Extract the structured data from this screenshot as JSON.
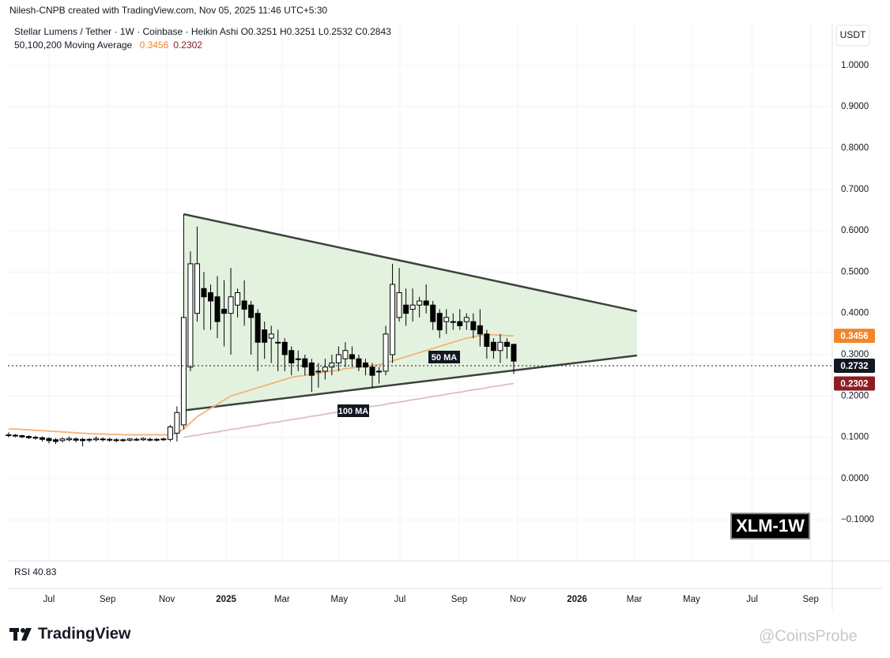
{
  "chart_data": {
    "type": "candlestick",
    "credit": "Nilesh-CNPB created with TradingView.com, Nov 05, 2025 11:46 UTC+5:30",
    "title": "Stellar Lumens / Tether · 1W · Coinbase · Heikin Ashi",
    "ohlc_text": [
      "O0.3251",
      "H0.3251",
      "L0.2532",
      "C0.2843"
    ],
    "ma_legend": "50,100,200 Moving Average",
    "currency": "USDT",
    "rsi_label": "RSI",
    "rsi_value": "40.83",
    "symbol_badge": "XLM-1W",
    "brand": "TradingView",
    "watermark": "@CoinsProbe",
    "up_color": "#ffffff",
    "down_color": "#000000",
    "x": [
      -6,
      -5,
      -4,
      -3,
      -2,
      -1,
      0,
      1,
      2,
      3,
      4,
      5,
      6,
      7,
      8,
      9,
      10,
      11,
      12,
      13,
      14,
      15,
      16,
      17,
      18,
      19,
      20,
      21,
      22,
      23,
      24,
      25,
      26,
      27,
      28,
      29,
      30,
      31,
      32,
      33,
      34,
      35,
      36,
      37,
      38,
      39,
      40,
      41,
      42,
      43,
      44,
      45,
      46,
      47,
      48,
      49,
      50,
      51,
      52,
      53,
      54,
      55,
      56,
      57,
      58,
      59,
      60,
      61,
      62,
      63,
      64,
      65,
      66,
      67,
      68,
      69
    ],
    "open": [
      0.106,
      0.105,
      0.104,
      0.102,
      0.1,
      0.099,
      0.097,
      0.094,
      0.092,
      0.094,
      0.096,
      0.095,
      0.094,
      0.094,
      0.096,
      0.095,
      0.094,
      0.093,
      0.093,
      0.095,
      0.094,
      0.095,
      0.094,
      0.094,
      0.095,
      0.11,
      0.13,
      0.27,
      0.4,
      0.46,
      0.45,
      0.44,
      0.41,
      0.4,
      0.42,
      0.43,
      0.42,
      0.4,
      0.36,
      0.34,
      0.33,
      0.33,
      0.31,
      0.29,
      0.29,
      0.28,
      0.26,
      0.26,
      0.27,
      0.28,
      0.29,
      0.3,
      0.29,
      0.28,
      0.27,
      0.26,
      0.26,
      0.3,
      0.39,
      0.42,
      0.41,
      0.42,
      0.43,
      0.42,
      0.4,
      0.38,
      0.38,
      0.38,
      0.38,
      0.38,
      0.37,
      0.35,
      0.33,
      0.31,
      0.33,
      0.3251
    ],
    "high": [
      0.112,
      0.108,
      0.106,
      0.105,
      0.104,
      0.102,
      0.1,
      0.098,
      0.1,
      0.102,
      0.1,
      0.099,
      0.098,
      0.102,
      0.1,
      0.099,
      0.098,
      0.097,
      0.098,
      0.099,
      0.1,
      0.099,
      0.098,
      0.099,
      0.13,
      0.175,
      0.64,
      0.55,
      0.61,
      0.5,
      0.47,
      0.49,
      0.48,
      0.51,
      0.46,
      0.48,
      0.43,
      0.41,
      0.38,
      0.37,
      0.36,
      0.34,
      0.32,
      0.31,
      0.3,
      0.29,
      0.28,
      0.29,
      0.3,
      0.32,
      0.33,
      0.32,
      0.3,
      0.29,
      0.28,
      0.27,
      0.37,
      0.52,
      0.51,
      0.46,
      0.46,
      0.44,
      0.47,
      0.43,
      0.41,
      0.41,
      0.4,
      0.41,
      0.4,
      0.4,
      0.41,
      0.36,
      0.34,
      0.35,
      0.34,
      0.3251
    ],
    "low": [
      0.1,
      0.1,
      0.098,
      0.096,
      0.094,
      0.09,
      0.085,
      0.084,
      0.088,
      0.09,
      0.088,
      0.078,
      0.088,
      0.09,
      0.09,
      0.089,
      0.088,
      0.089,
      0.09,
      0.091,
      0.091,
      0.09,
      0.09,
      0.091,
      0.09,
      0.09,
      0.12,
      0.26,
      0.38,
      0.36,
      0.36,
      0.34,
      0.32,
      0.3,
      0.39,
      0.37,
      0.3,
      0.26,
      0.29,
      0.28,
      0.26,
      0.26,
      0.25,
      0.26,
      0.25,
      0.21,
      0.22,
      0.24,
      0.25,
      0.26,
      0.27,
      0.27,
      0.26,
      0.25,
      0.22,
      0.23,
      0.25,
      0.28,
      0.38,
      0.37,
      0.38,
      0.39,
      0.4,
      0.36,
      0.34,
      0.35,
      0.36,
      0.36,
      0.36,
      0.34,
      0.32,
      0.29,
      0.29,
      0.28,
      0.29,
      0.2532
    ],
    "close": [
      0.104,
      0.103,
      0.101,
      0.099,
      0.098,
      0.095,
      0.092,
      0.09,
      0.096,
      0.097,
      0.093,
      0.092,
      0.095,
      0.097,
      0.094,
      0.093,
      0.092,
      0.094,
      0.096,
      0.094,
      0.097,
      0.093,
      0.095,
      0.096,
      0.125,
      0.16,
      0.39,
      0.52,
      0.52,
      0.44,
      0.43,
      0.38,
      0.4,
      0.44,
      0.45,
      0.41,
      0.39,
      0.33,
      0.33,
      0.35,
      0.33,
      0.3,
      0.28,
      0.29,
      0.27,
      0.25,
      0.26,
      0.27,
      0.28,
      0.3,
      0.31,
      0.29,
      0.27,
      0.27,
      0.25,
      0.26,
      0.35,
      0.47,
      0.45,
      0.4,
      0.42,
      0.43,
      0.42,
      0.38,
      0.36,
      0.39,
      0.38,
      0.37,
      0.39,
      0.36,
      0.35,
      0.32,
      0.31,
      0.33,
      0.32,
      0.2843
    ],
    "series": [
      {
        "name": "50 MA",
        "color": "#f2b27a",
        "label_color": "#f0862a",
        "values": [
          0.12,
          0.12,
          0.119,
          0.118,
          0.117,
          0.116,
          0.115,
          0.114,
          0.113,
          0.112,
          0.111,
          0.11,
          0.109,
          0.108,
          0.108,
          0.107,
          0.107,
          0.106,
          0.106,
          0.106,
          0.106,
          0.106,
          0.106,
          0.106,
          0.106,
          0.11,
          0.12,
          0.135,
          0.15,
          0.16,
          0.17,
          0.18,
          0.19,
          0.2,
          0.205,
          0.21,
          0.215,
          0.22,
          0.225,
          0.23,
          0.235,
          0.24,
          0.245,
          0.248,
          0.25,
          0.252,
          0.255,
          0.258,
          0.26,
          0.263,
          0.266,
          0.268,
          0.27,
          0.272,
          0.274,
          0.276,
          0.28,
          0.285,
          0.29,
          0.295,
          0.3,
          0.305,
          0.31,
          0.315,
          0.32,
          0.325,
          0.33,
          0.335,
          0.34,
          0.343,
          0.346,
          0.348,
          0.348,
          0.347,
          0.346,
          0.3456
        ]
      },
      {
        "name": "100 MA",
        "color": "#dcbfc3",
        "label_color": "#8b1e24",
        "values": [
          null,
          null,
          null,
          null,
          null,
          null,
          null,
          null,
          null,
          null,
          null,
          null,
          null,
          null,
          null,
          null,
          null,
          null,
          null,
          null,
          null,
          null,
          null,
          null,
          null,
          null,
          0.1,
          0.103,
          0.105,
          0.108,
          0.111,
          0.113,
          0.116,
          0.119,
          0.121,
          0.124,
          0.127,
          0.129,
          0.132,
          0.135,
          0.137,
          0.14,
          0.143,
          0.145,
          0.148,
          0.151,
          0.153,
          0.156,
          0.159,
          0.161,
          0.164,
          0.167,
          0.169,
          0.172,
          0.175,
          0.177,
          0.18,
          0.183,
          0.185,
          0.188,
          0.191,
          0.193,
          0.196,
          0.199,
          0.201,
          0.204,
          0.207,
          0.209,
          0.212,
          0.215,
          0.217,
          0.22,
          0.223,
          0.225,
          0.228,
          0.2302
        ]
      }
    ],
    "last_price": 0.2732,
    "pattern": {
      "fill": "#e3f2df",
      "color": "#3c423c",
      "upper": {
        "x": [
          20,
          87.3
        ],
        "y": [
          0.64,
          0.405
        ]
      },
      "lower": {
        "x": [
          20,
          87.3
        ],
        "y": [
          0.165,
          0.298
        ]
      }
    },
    "xlim": [
      -6.1,
      116.3
    ],
    "xticks": [
      {
        "value": 0,
        "label": "Jul"
      },
      {
        "value": 8.7,
        "label": "Sep"
      },
      {
        "value": 17.5,
        "label": "Nov"
      },
      {
        "value": 26.3,
        "label": "2025"
      },
      {
        "value": 34.6,
        "label": "Mar"
      },
      {
        "value": 43.1,
        "label": "May"
      },
      {
        "value": 52.1,
        "label": "Jul"
      },
      {
        "value": 60.9,
        "label": "Sep"
      },
      {
        "value": 69.6,
        "label": "Nov"
      },
      {
        "value": 78.4,
        "label": "2026"
      },
      {
        "value": 86.9,
        "label": "Mar"
      },
      {
        "value": 95.4,
        "label": "May"
      },
      {
        "value": 104.4,
        "label": "Jul"
      },
      {
        "value": 113.1,
        "label": "Sep"
      }
    ],
    "ylim": [
      -0.199,
      1.101
    ],
    "yticks": [
      {
        "value": -0.1,
        "label": "−0.1000"
      },
      {
        "value": 0,
        "label": "0.0000"
      },
      {
        "value": 0.1,
        "label": "0.1000"
      },
      {
        "value": 0.2,
        "label": "0.2000"
      },
      {
        "value": 0.3,
        "label": "0.3000"
      },
      {
        "value": 0.4,
        "label": "0.4000"
      },
      {
        "value": 0.5,
        "label": "0.5000"
      },
      {
        "value": 0.6,
        "label": "0.6000"
      },
      {
        "value": 0.7,
        "label": "0.7000"
      },
      {
        "value": 0.8,
        "label": "0.8000"
      },
      {
        "value": 0.9,
        "label": "0.9000"
      },
      {
        "value": 1,
        "label": "1.0000"
      }
    ],
    "grid": true
  }
}
